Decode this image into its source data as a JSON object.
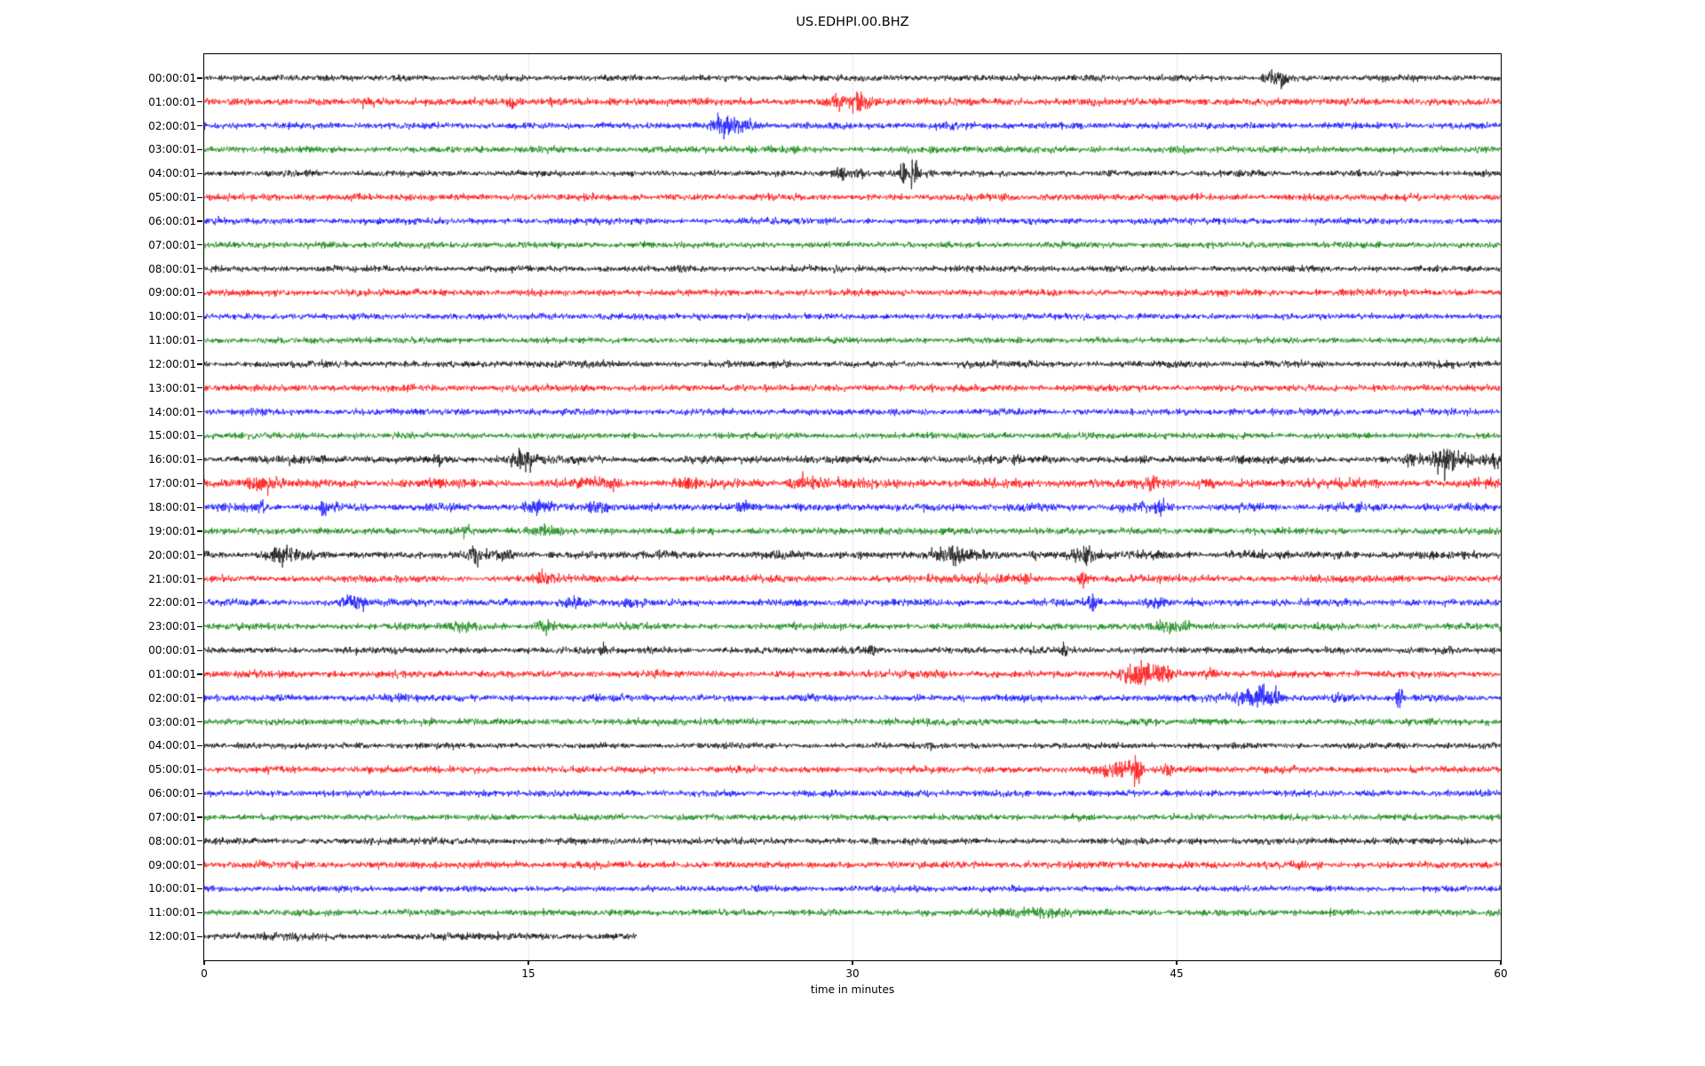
{
  "chart_data": {
    "type": "line",
    "subtype": "seismogram-helicorder",
    "title": "US.EDHPI.00.BHZ",
    "xlabel": "time in minutes",
    "xlim": [
      0,
      60
    ],
    "xticks": [
      "0",
      "15",
      "30",
      "45",
      "60"
    ],
    "xtick_values": [
      0,
      15,
      30,
      45,
      60
    ],
    "grid_minutes": [
      15,
      30,
      45
    ],
    "grid_on": true,
    "grid_color": "#b0b0b0",
    "axis_color": "#000000",
    "background_color": "#ffffff",
    "trace_color_cycle": [
      "#000000",
      "#ff0000",
      "#0000ff",
      "#008000"
    ],
    "legend": null,
    "rows": [
      {
        "label": "00:00:01",
        "color": "#000000",
        "duration_min": 60,
        "noise": 2.2,
        "mod": 0.18,
        "events": [
          {
            "t": 37.7,
            "amp": 3,
            "dur": 0.15
          },
          {
            "t": 49.2,
            "amp": 4,
            "dur": 0.2
          },
          {
            "t": 49.8,
            "amp": 6,
            "dur": 0.25
          }
        ]
      },
      {
        "label": "01:00:01",
        "color": "#ff0000",
        "duration_min": 60,
        "noise": 2.6,
        "mod": 0.2,
        "events": [
          {
            "t": 7.5,
            "amp": 3,
            "dur": 0.2
          },
          {
            "t": 14.3,
            "amp": 4,
            "dur": 0.2
          },
          {
            "t": 16.3,
            "amp": 3,
            "dur": 0.2
          },
          {
            "t": 29.2,
            "amp": 5,
            "dur": 0.35
          },
          {
            "t": 30.3,
            "amp": 8,
            "dur": 0.4
          }
        ]
      },
      {
        "label": "02:00:01",
        "color": "#0000ff",
        "duration_min": 60,
        "noise": 2.3,
        "mod": 0.18,
        "events": [
          {
            "t": 24.0,
            "amp": 9,
            "dur": 0.35
          },
          {
            "t": 25.0,
            "amp": 5,
            "dur": 0.45
          }
        ]
      },
      {
        "label": "03:00:01",
        "color": "#008000",
        "duration_min": 60,
        "noise": 2.3,
        "mod": 0.15,
        "events": []
      },
      {
        "label": "04:00:01",
        "color": "#000000",
        "duration_min": 60,
        "noise": 2.2,
        "mod": 0.18,
        "events": [
          {
            "t": 29.4,
            "amp": 5,
            "dur": 0.25
          },
          {
            "t": 30.3,
            "amp": 4,
            "dur": 0.2
          },
          {
            "t": 32.3,
            "amp": 9,
            "dur": 0.12
          },
          {
            "t": 32.8,
            "amp": 14,
            "dur": 0.18
          },
          {
            "t": 33.6,
            "amp": 4,
            "dur": 0.12
          }
        ]
      },
      {
        "label": "05:00:01",
        "color": "#ff0000",
        "duration_min": 60,
        "noise": 2.4,
        "mod": 0.15,
        "events": []
      },
      {
        "label": "06:00:01",
        "color": "#0000ff",
        "duration_min": 60,
        "noise": 2.3,
        "mod": 0.15,
        "events": []
      },
      {
        "label": "07:00:01",
        "color": "#008000",
        "duration_min": 60,
        "noise": 2.2,
        "mod": 0.13,
        "events": []
      },
      {
        "label": "08:00:01",
        "color": "#000000",
        "duration_min": 60,
        "noise": 2.2,
        "mod": 0.15,
        "events": []
      },
      {
        "label": "09:00:01",
        "color": "#ff0000",
        "duration_min": 60,
        "noise": 2.4,
        "mod": 0.13,
        "events": []
      },
      {
        "label": "10:00:01",
        "color": "#0000ff",
        "duration_min": 60,
        "noise": 2.2,
        "mod": 0.13,
        "events": []
      },
      {
        "label": "11:00:01",
        "color": "#008000",
        "duration_min": 60,
        "noise": 2.2,
        "mod": 0.13,
        "events": []
      },
      {
        "label": "12:00:01",
        "color": "#000000",
        "duration_min": 60,
        "noise": 2.4,
        "mod": 0.2,
        "events": []
      },
      {
        "label": "13:00:01",
        "color": "#ff0000",
        "duration_min": 60,
        "noise": 2.4,
        "mod": 0.15,
        "events": []
      },
      {
        "label": "14:00:01",
        "color": "#0000ff",
        "duration_min": 60,
        "noise": 2.3,
        "mod": 0.18,
        "events": []
      },
      {
        "label": "15:00:01",
        "color": "#008000",
        "duration_min": 60,
        "noise": 2.2,
        "mod": 0.13,
        "events": []
      },
      {
        "label": "16:00:01",
        "color": "#000000",
        "duration_min": 60,
        "noise": 2.7,
        "mod": 0.28,
        "events": [
          {
            "t": 10.9,
            "amp": 5,
            "dur": 0.15
          },
          {
            "t": 14.8,
            "amp": 8,
            "dur": 0.5
          },
          {
            "t": 55.9,
            "amp": 4,
            "dur": 0.3
          },
          {
            "t": 57.4,
            "amp": 16,
            "dur": 0.3
          },
          {
            "t": 58.4,
            "amp": 6,
            "dur": 0.25
          },
          {
            "t": 59.6,
            "amp": 7,
            "dur": 0.3
          }
        ]
      },
      {
        "label": "17:00:01",
        "color": "#ff0000",
        "duration_min": 60,
        "noise": 3.1,
        "mod": 0.28,
        "events": [
          {
            "t": 2.7,
            "amp": 6,
            "dur": 0.5
          },
          {
            "t": 18.8,
            "amp": 4,
            "dur": 0.4
          },
          {
            "t": 22.3,
            "amp": 4,
            "dur": 0.4
          },
          {
            "t": 27.8,
            "amp": 5,
            "dur": 0.6
          },
          {
            "t": 44.0,
            "amp": 3,
            "dur": 0.5
          }
        ]
      },
      {
        "label": "18:00:01",
        "color": "#0000ff",
        "duration_min": 60,
        "noise": 2.7,
        "mod": 0.24,
        "events": [
          {
            "t": 2.5,
            "amp": 4,
            "dur": 0.3
          },
          {
            "t": 5.5,
            "amp": 8,
            "dur": 0.12
          },
          {
            "t": 15.4,
            "amp": 6,
            "dur": 0.4
          },
          {
            "t": 18.3,
            "amp": 4,
            "dur": 0.4
          },
          {
            "t": 25.0,
            "amp": 5,
            "dur": 0.2
          },
          {
            "t": 44.2,
            "amp": 4,
            "dur": 0.3
          },
          {
            "t": 53.5,
            "amp": 3,
            "dur": 0.3
          }
        ]
      },
      {
        "label": "19:00:01",
        "color": "#008000",
        "duration_min": 60,
        "noise": 2.4,
        "mod": 0.18,
        "events": [
          {
            "t": 12.0,
            "amp": 3,
            "dur": 0.4
          },
          {
            "t": 15.9,
            "amp": 4,
            "dur": 0.5
          }
        ]
      },
      {
        "label": "20:00:01",
        "color": "#000000",
        "duration_min": 60,
        "noise": 2.7,
        "mod": 0.28,
        "events": [
          {
            "t": 3.8,
            "amp": 5,
            "dur": 0.6
          },
          {
            "t": 12.5,
            "amp": 10,
            "dur": 0.12
          },
          {
            "t": 13.8,
            "amp": 4,
            "dur": 0.3
          },
          {
            "t": 34.6,
            "amp": 6,
            "dur": 0.8
          },
          {
            "t": 38.4,
            "amp": 5,
            "dur": 0.12
          },
          {
            "t": 40.8,
            "amp": 6,
            "dur": 0.5
          }
        ]
      },
      {
        "label": "21:00:01",
        "color": "#ff0000",
        "duration_min": 60,
        "noise": 2.5,
        "mod": 0.2,
        "events": [
          {
            "t": 15.8,
            "amp": 4,
            "dur": 0.4
          },
          {
            "t": 37.0,
            "amp": 3,
            "dur": 1.0
          },
          {
            "t": 40.7,
            "amp": 7,
            "dur": 0.2
          }
        ]
      },
      {
        "label": "22:00:01",
        "color": "#0000ff",
        "duration_min": 60,
        "noise": 2.5,
        "mod": 0.2,
        "events": [
          {
            "t": 7.0,
            "amp": 6,
            "dur": 0.4
          },
          {
            "t": 17.0,
            "amp": 4,
            "dur": 0.5
          },
          {
            "t": 19.7,
            "amp": 4,
            "dur": 0.15
          },
          {
            "t": 41.1,
            "amp": 12,
            "dur": 0.15
          },
          {
            "t": 44.0,
            "amp": 3,
            "dur": 0.4
          }
        ]
      },
      {
        "label": "23:00:01",
        "color": "#008000",
        "duration_min": 60,
        "noise": 2.4,
        "mod": 0.18,
        "events": [
          {
            "t": 12.0,
            "amp": 3,
            "dur": 0.5
          },
          {
            "t": 15.8,
            "amp": 4,
            "dur": 0.5
          },
          {
            "t": 44.8,
            "amp": 4,
            "dur": 0.8
          }
        ]
      },
      {
        "label": "00:00:01",
        "color": "#000000",
        "duration_min": 60,
        "noise": 2.3,
        "mod": 0.18,
        "events": [
          {
            "t": 18.4,
            "amp": 6,
            "dur": 0.1
          },
          {
            "t": 30.8,
            "amp": 3,
            "dur": 0.3
          },
          {
            "t": 39.8,
            "amp": 5,
            "dur": 0.12
          }
        ]
      },
      {
        "label": "01:00:01",
        "color": "#ff0000",
        "duration_min": 60,
        "noise": 2.5,
        "mod": 0.18,
        "events": [
          {
            "t": 42.8,
            "amp": 6,
            "dur": 0.4
          },
          {
            "t": 43.4,
            "amp": 9,
            "dur": 0.3
          },
          {
            "t": 44.3,
            "amp": 7,
            "dur": 0.35
          },
          {
            "t": 46.6,
            "amp": 3,
            "dur": 0.4
          }
        ]
      },
      {
        "label": "02:00:01",
        "color": "#0000ff",
        "duration_min": 60,
        "noise": 2.5,
        "mod": 0.2,
        "events": [
          {
            "t": 48.3,
            "amp": 6,
            "dur": 0.5
          },
          {
            "t": 48.9,
            "amp": 12,
            "dur": 0.15
          },
          {
            "t": 49.5,
            "amp": 7,
            "dur": 0.3
          },
          {
            "t": 52.5,
            "amp": 3,
            "dur": 0.3
          },
          {
            "t": 55.3,
            "amp": 10,
            "dur": 0.12
          }
        ]
      },
      {
        "label": "03:00:01",
        "color": "#008000",
        "duration_min": 60,
        "noise": 2.4,
        "mod": 0.18,
        "events": []
      },
      {
        "label": "04:00:01",
        "color": "#000000",
        "duration_min": 60,
        "noise": 2.1,
        "mod": 0.15,
        "events": [
          {
            "t": 33.6,
            "amp": 4,
            "dur": 0.12
          }
        ]
      },
      {
        "label": "05:00:01",
        "color": "#ff0000",
        "duration_min": 60,
        "noise": 2.4,
        "mod": 0.15,
        "events": [
          {
            "t": 42.2,
            "amp": 7,
            "dur": 0.6
          },
          {
            "t": 43.2,
            "amp": 22,
            "dur": 0.12
          },
          {
            "t": 44.5,
            "amp": 4,
            "dur": 0.3
          }
        ]
      },
      {
        "label": "06:00:01",
        "color": "#0000ff",
        "duration_min": 60,
        "noise": 2.3,
        "mod": 0.13,
        "events": []
      },
      {
        "label": "07:00:01",
        "color": "#008000",
        "duration_min": 60,
        "noise": 2.2,
        "mod": 0.13,
        "events": []
      },
      {
        "label": "08:00:01",
        "color": "#000000",
        "duration_min": 60,
        "noise": 2.3,
        "mod": 0.15,
        "events": []
      },
      {
        "label": "09:00:01",
        "color": "#ff0000",
        "duration_min": 60,
        "noise": 2.5,
        "mod": 0.15,
        "events": []
      },
      {
        "label": "10:00:01",
        "color": "#0000ff",
        "duration_min": 60,
        "noise": 2.2,
        "mod": 0.13,
        "events": []
      },
      {
        "label": "11:00:01",
        "color": "#008000",
        "duration_min": 60,
        "noise": 2.3,
        "mod": 0.15,
        "events": [
          {
            "t": 38.0,
            "amp": 3,
            "dur": 1.5
          }
        ]
      },
      {
        "label": "12:00:01",
        "color": "#000000",
        "duration_min": 20,
        "noise": 2.5,
        "mod": 0.2,
        "events": []
      }
    ]
  }
}
